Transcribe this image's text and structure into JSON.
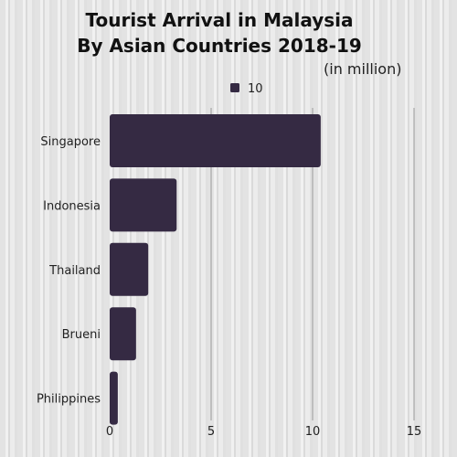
{
  "title_line1": "Tourist Arrival in Malaysia",
  "title_line2": "By Asian Countries 2018-19",
  "subtitle": "(in million)",
  "colors": {
    "bar": "#352a43",
    "grid": "#9a9a9a",
    "text": "#222222"
  },
  "chart_data": {
    "type": "bar",
    "orientation": "horizontal",
    "categories": [
      "Singapore",
      "Indonesia",
      "Thailand",
      "Brueni",
      "Philippines"
    ],
    "series": [
      {
        "name": "10",
        "values": [
          10.4,
          3.3,
          1.9,
          1.3,
          0.4
        ]
      }
    ],
    "xlim": [
      0,
      15
    ],
    "xticks": [
      0,
      5,
      10,
      15
    ],
    "xlabel": "",
    "ylabel": "",
    "grid": "vertical",
    "legend_position": "top-center"
  }
}
